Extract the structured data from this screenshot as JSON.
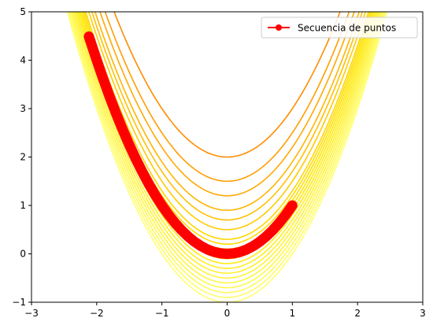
{
  "chart_data": {
    "type": "line",
    "title": "",
    "xlabel": "",
    "ylabel": "",
    "xlim": [
      -3,
      3
    ],
    "ylim": [
      -1,
      5
    ],
    "xticks": [
      -3,
      -2,
      -1,
      0,
      1,
      2,
      3
    ],
    "yticks": [
      -1,
      0,
      1,
      2,
      3,
      4,
      5
    ],
    "grid": false,
    "legend_position": "top-right",
    "contours": {
      "function": "y = x^2 + c",
      "levels": [
        -1.0,
        -0.9,
        -0.8,
        -0.7,
        -0.6,
        -0.5,
        -0.4,
        -0.3,
        -0.2,
        -0.1,
        0,
        0.1,
        0.2,
        0.3,
        0.5,
        0.7,
        0.9,
        1.2,
        1.5,
        2.0
      ],
      "colormap": [
        "#ffff70",
        "#ffe600",
        "#ffb000",
        "#ff8c00"
      ]
    },
    "series": [
      {
        "name": "Secuencia de puntos",
        "color": "#ff0000",
        "marker": "circle",
        "x": [
          -2.12,
          -2.0,
          -1.9,
          -1.8,
          -1.7,
          -1.6,
          -1.5,
          -1.4,
          -1.3,
          -1.2,
          -1.1,
          -1.0,
          -0.9,
          -0.8,
          -0.7,
          -0.6,
          -0.5,
          -0.4,
          -0.3,
          -0.2,
          -0.1,
          0.0,
          0.1,
          0.2,
          0.3,
          0.4,
          0.5,
          0.6,
          0.7,
          0.8,
          0.9,
          1.0
        ],
        "y": [
          4.49,
          4.0,
          3.61,
          3.24,
          2.89,
          2.56,
          2.25,
          1.96,
          1.69,
          1.44,
          1.21,
          1.0,
          0.81,
          0.64,
          0.49,
          0.36,
          0.25,
          0.16,
          0.09,
          0.04,
          0.01,
          0.0,
          0.01,
          0.04,
          0.09,
          0.16,
          0.25,
          0.36,
          0.49,
          0.64,
          0.81,
          1.0
        ]
      }
    ]
  }
}
